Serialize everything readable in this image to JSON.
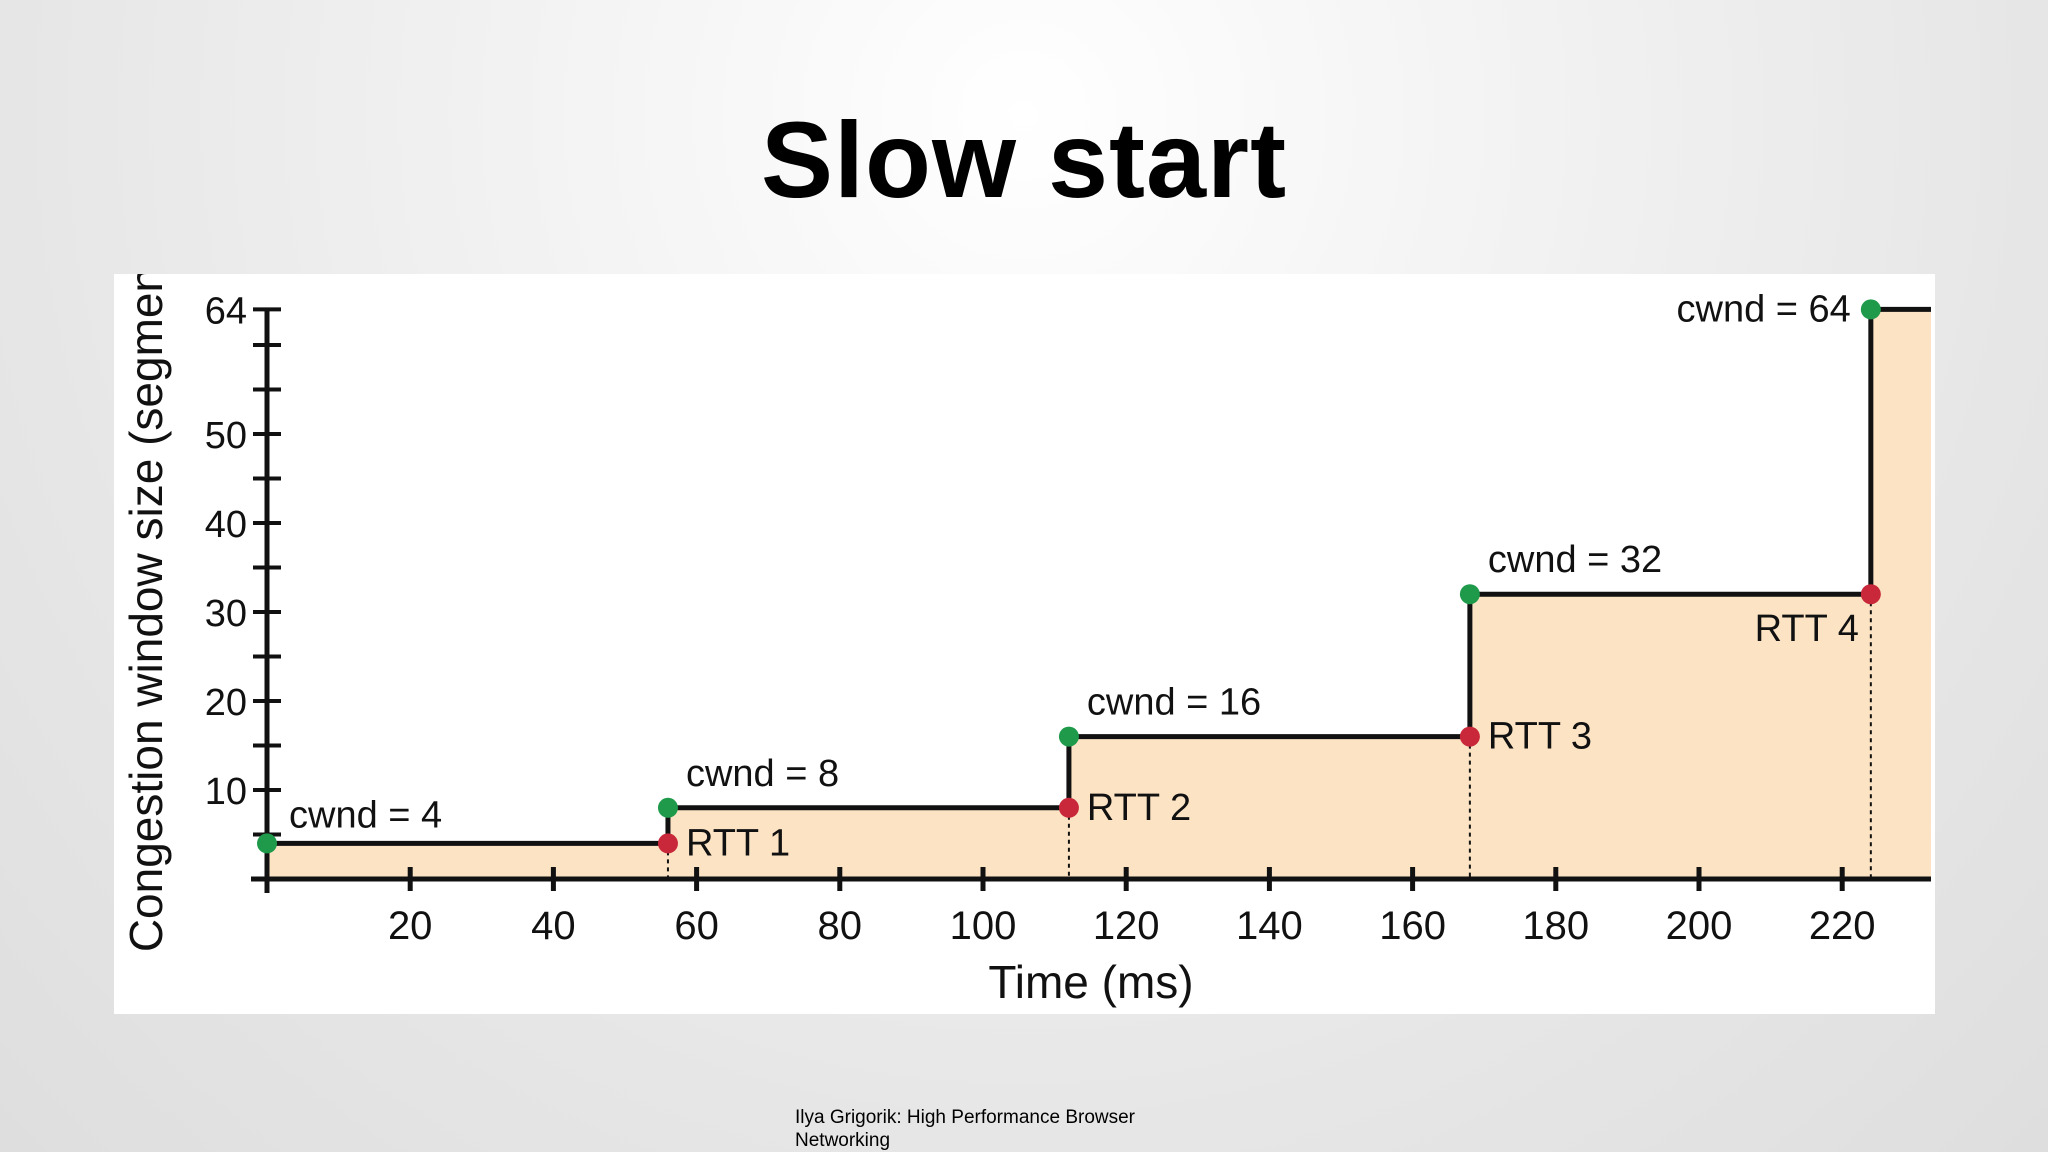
{
  "slide": {
    "title": "Slow start",
    "source": "Ilya Grigorik: High Performance Browser Networking"
  },
  "chart_data": {
    "type": "line",
    "subtype": "step-area",
    "title": "",
    "xlabel": "Time (ms)",
    "ylabel": "Congestion window size (segments)",
    "xlim": [
      0,
      233
    ],
    "ylim": [
      0,
      64
    ],
    "x_ticks": [
      20,
      40,
      60,
      80,
      100,
      120,
      140,
      160,
      180,
      200,
      220
    ],
    "y_ticks_labeled": [
      10,
      20,
      30,
      40,
      50,
      64
    ],
    "grid": false,
    "fill_color": "#fce3c4",
    "line_color": "#111111",
    "series": [
      {
        "steps": [
          {
            "x_start": 0,
            "x_end": 56,
            "cwnd": 4
          },
          {
            "x_start": 56,
            "x_end": 112,
            "cwnd": 8
          },
          {
            "x_start": 112,
            "x_end": 168,
            "cwnd": 16
          },
          {
            "x_start": 168,
            "x_end": 224,
            "cwnd": 32
          },
          {
            "x_start": 224,
            "x_end": 233,
            "cwnd": 64
          }
        ]
      }
    ],
    "cwnd_points": [
      {
        "x": 0,
        "y": 4,
        "label": "cwnd = 4"
      },
      {
        "x": 56,
        "y": 8,
        "label": "cwnd = 8"
      },
      {
        "x": 112,
        "y": 16,
        "label": "cwnd = 16"
      },
      {
        "x": 168,
        "y": 32,
        "label": "cwnd = 32"
      },
      {
        "x": 224,
        "y": 64,
        "label": "cwnd = 64"
      }
    ],
    "rtt_points": [
      {
        "x": 56,
        "y": 4,
        "label": "RTT 1"
      },
      {
        "x": 112,
        "y": 8,
        "label": "RTT 2"
      },
      {
        "x": 168,
        "y": 16,
        "label": "RTT 3"
      },
      {
        "x": 224,
        "y": 32,
        "label": "RTT 4"
      }
    ],
    "colors": {
      "cwnd_point": "#1f9a4b",
      "rtt_point": "#c8283a",
      "axis": "#111111"
    }
  }
}
